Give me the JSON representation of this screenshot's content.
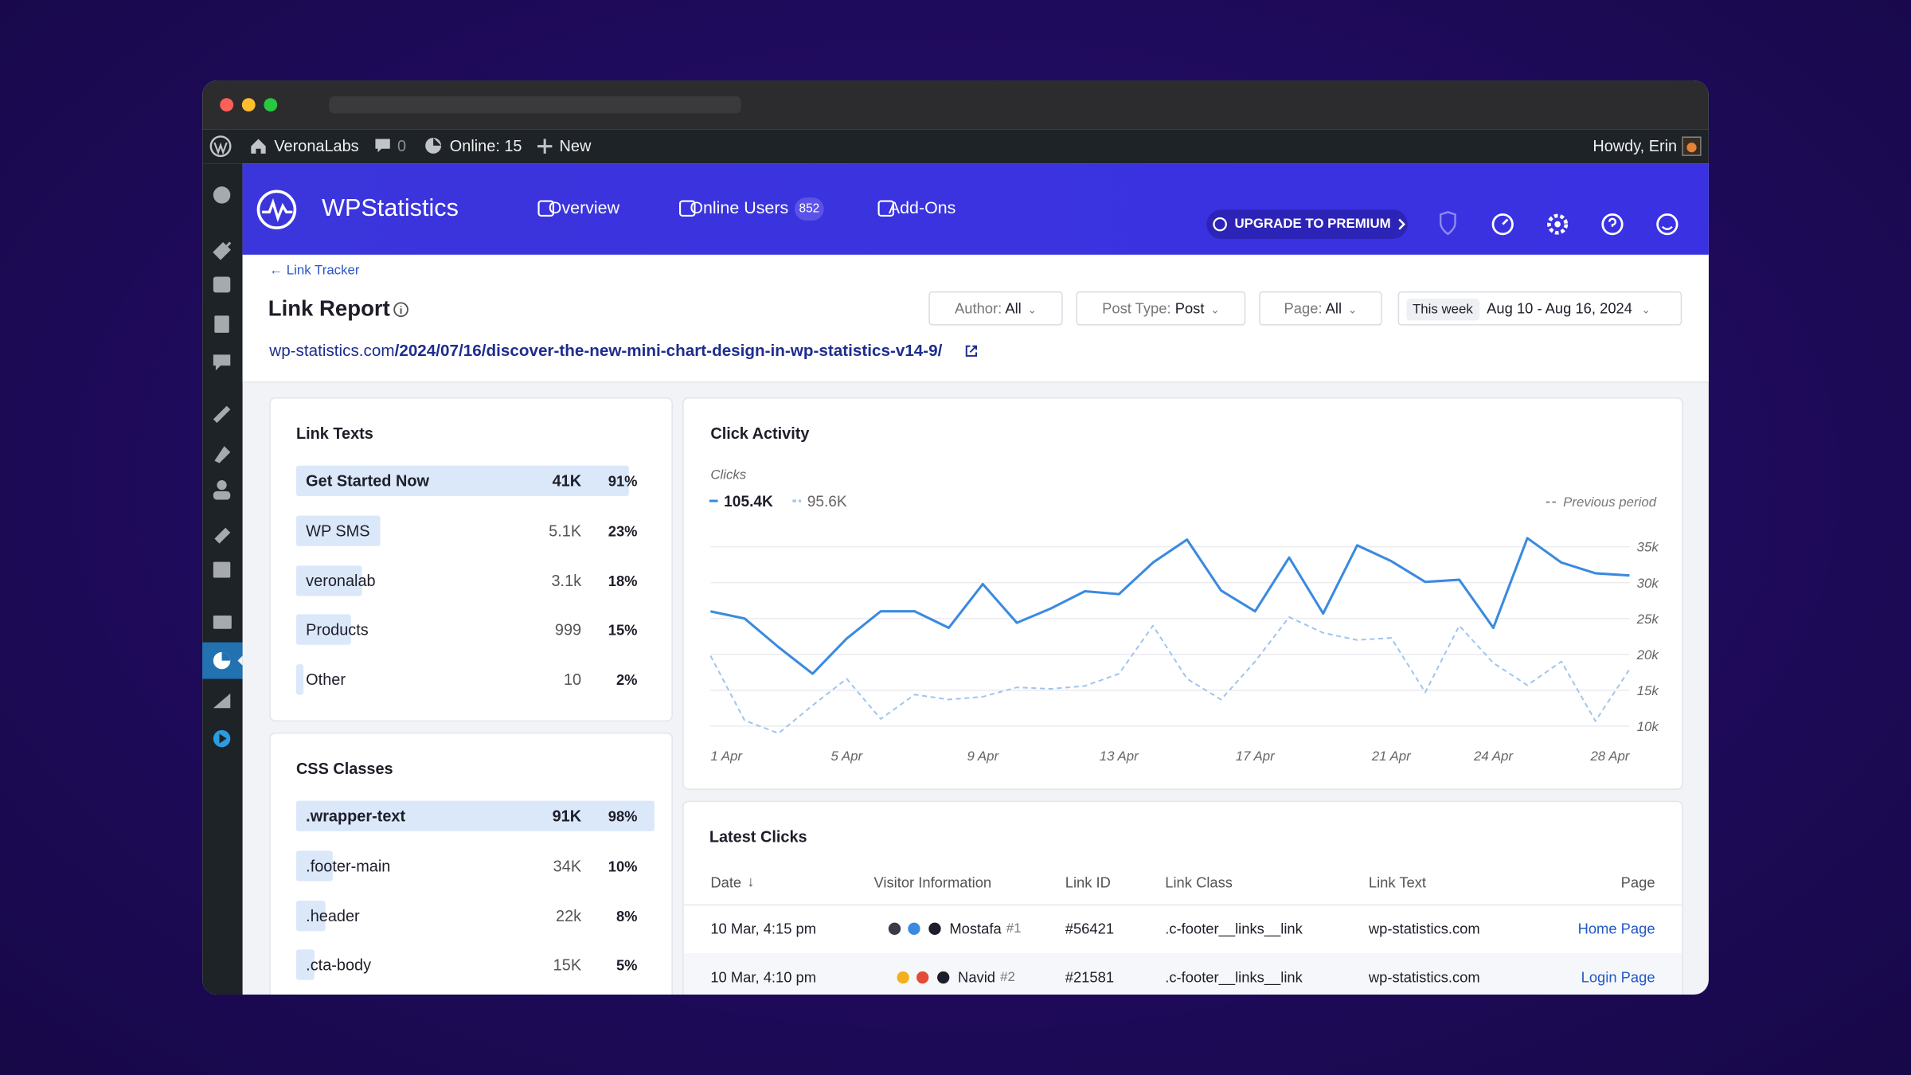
{
  "admin_bar": {
    "site": "VeronaLabs",
    "comments": "0",
    "online": "Online: 15",
    "new": "New",
    "howdy": "Howdy, Erin"
  },
  "header": {
    "brand": "WPStatistics",
    "nav": [
      "Overview",
      "Online Users",
      "Add-Ons"
    ],
    "online_badge": "852",
    "upgrade": "UPGRADE TO PREMIUM"
  },
  "page": {
    "back": "Link Tracker",
    "title": "Link Report",
    "url_host": "wp-statistics.com",
    "url_path": "/2024/07/16/discover-the-new-mini-chart-design-in-wp-statistics-v14-9/",
    "filters": [
      {
        "label": "Author:",
        "value": "All"
      },
      {
        "label": "Post Type:",
        "value": "Post"
      },
      {
        "label": "Page:",
        "value": "All"
      }
    ],
    "date_preset": "This week",
    "date_range": "Aug 10 - Aug 16, 2024"
  },
  "link_texts": {
    "title": "Link Texts",
    "rows": [
      {
        "label": "Get Started Now",
        "count": "41K",
        "percent": 91,
        "percent_label": "91%"
      },
      {
        "label": "WP SMS",
        "count": "5.1K",
        "percent": 23,
        "percent_label": "23%"
      },
      {
        "label": "veronalab",
        "count": "3.1k",
        "percent": 18,
        "percent_label": "18%"
      },
      {
        "label": "Products",
        "count": "999",
        "percent": 15,
        "percent_label": "15%"
      },
      {
        "label": "Other",
        "count": "10",
        "percent": 2,
        "percent_label": "2%"
      }
    ]
  },
  "css_classes": {
    "title": "CSS Classes",
    "rows": [
      {
        "label": ".wrapper-text",
        "count": "91K",
        "percent": 98,
        "percent_label": "98%"
      },
      {
        "label": ".footer-main",
        "count": "34K",
        "percent": 10,
        "percent_label": "10%"
      },
      {
        "label": ".header",
        "count": "22k",
        "percent": 8,
        "percent_label": "8%"
      },
      {
        "label": ".cta-body",
        "count": "15K",
        "percent": 5,
        "percent_label": "5%"
      }
    ]
  },
  "chart_data": {
    "type": "line",
    "title": "Click Activity",
    "y_label": "Clicks",
    "previous_period_label": "Previous period",
    "categories": [
      "1 Apr",
      null,
      null,
      null,
      "5 Apr",
      null,
      null,
      null,
      "9 Apr",
      null,
      null,
      null,
      "13 Apr",
      null,
      null,
      null,
      "17 Apr",
      null,
      null,
      null,
      "21 Apr",
      null,
      null,
      "24 Apr",
      null,
      null,
      null,
      "28 Apr"
    ],
    "series": [
      {
        "name": "105.4K",
        "color": "#3a8ae0",
        "dashed": false,
        "values": [
          26000,
          25000,
          21000,
          17300,
          22200,
          26000,
          26000,
          23700,
          29800,
          24400,
          26400,
          28800,
          28400,
          32800,
          36000,
          28900,
          26000,
          33500,
          25700,
          35200,
          33000,
          30100,
          30400,
          23700,
          36200,
          32800,
          31300,
          31000
        ]
      },
      {
        "name": "95.6K",
        "color": "#9fc4ee",
        "dashed": true,
        "values": [
          19800,
          10800,
          9000,
          12900,
          16600,
          11000,
          14400,
          13700,
          14100,
          15400,
          15200,
          15600,
          17300,
          24000,
          16600,
          13700,
          19000,
          25200,
          23000,
          22000,
          22300,
          14700,
          24000,
          18800,
          15700,
          19000,
          10700,
          17900
        ]
      }
    ],
    "ylim": [
      8600,
      36800
    ],
    "yticks": [
      {
        "value": 10000,
        "label": "10k"
      },
      {
        "value": 15000,
        "label": "15k"
      },
      {
        "value": 20000,
        "label": "20k"
      },
      {
        "value": 25000,
        "label": "25k"
      },
      {
        "value": 30000,
        "label": "30k"
      },
      {
        "value": 35000,
        "label": "35k"
      }
    ],
    "grid": true
  },
  "latest_clicks": {
    "title": "Latest Clicks",
    "columns": [
      "Date",
      "Visitor Information",
      "Link ID",
      "Link Class",
      "Link Text",
      "Page"
    ],
    "rows": [
      {
        "date": "10 Mar, 4:15 pm",
        "visitor": "Mostafa",
        "visitor_id": "#1",
        "link_id": "#56421",
        "link_class": ".c-footer__links__link",
        "link_text": "wp-statistics.com",
        "page": "Home Page"
      },
      {
        "date": "10 Mar, 4:10 pm",
        "visitor": "Navid",
        "visitor_id": "#2",
        "link_id": "#21581",
        "link_class": ".c-footer__links__link",
        "link_text": "wp-statistics.com",
        "page": "Login Page"
      }
    ]
  }
}
